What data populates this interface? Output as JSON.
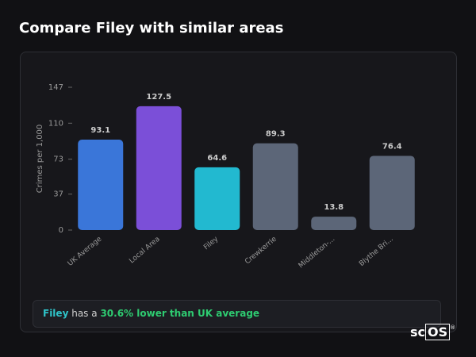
{
  "header": {
    "title": "Compare Filey with similar areas"
  },
  "chart_data": {
    "type": "bar",
    "y_label": "Crimes per 1,000",
    "categories": [
      "UK Average",
      "Local Area",
      "Filey",
      "Crewkerrie",
      "Middleton-...",
      "Blythe Bri..."
    ],
    "values": [
      93.1,
      127.5,
      64.6,
      89.3,
      13.8,
      76.4
    ],
    "colors": [
      "#3a76d9",
      "#7b4fd8",
      "#22b9d0",
      "#5c6678",
      "#5c6678",
      "#5c6678"
    ],
    "ylim": [
      0,
      147
    ],
    "yticks": [
      0,
      37,
      73,
      110,
      147
    ],
    "grid": false
  },
  "note": {
    "area": "Filey",
    "text": "has a",
    "highlight": "30.6% lower than UK average"
  },
  "logo": {
    "plain": "sc",
    "boxed": "OS",
    "mark": "®"
  }
}
